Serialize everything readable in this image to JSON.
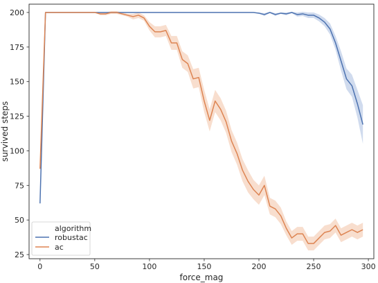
{
  "chart_data": {
    "type": "line",
    "xlabel": "force_mag",
    "ylabel": "survived steps",
    "xlim": [
      -10,
      305
    ],
    "ylim": [
      22,
      206
    ],
    "xticks": [
      0,
      50,
      100,
      150,
      200,
      250,
      300
    ],
    "yticks": [
      25,
      50,
      75,
      100,
      125,
      150,
      175,
      200
    ],
    "grid": false,
    "legend": {
      "title": "algorithm",
      "placement": "bottom-left"
    },
    "x": [
      0,
      5,
      10,
      15,
      20,
      25,
      30,
      35,
      40,
      45,
      50,
      55,
      60,
      65,
      70,
      75,
      80,
      85,
      90,
      95,
      100,
      105,
      110,
      115,
      120,
      125,
      130,
      135,
      140,
      145,
      150,
      155,
      160,
      165,
      170,
      175,
      180,
      185,
      190,
      195,
      200,
      205,
      210,
      215,
      220,
      225,
      230,
      235,
      240,
      245,
      250,
      255,
      260,
      265,
      270,
      275,
      280,
      285,
      290,
      295
    ],
    "series": [
      {
        "name": "robustac",
        "color": "#4c72b0",
        "band_color": "#a9bde0",
        "values": [
          62,
          200,
          200,
          200,
          200,
          200,
          200,
          200,
          200,
          200,
          200,
          200,
          200,
          200,
          200,
          200,
          200,
          200,
          200,
          200,
          200,
          200,
          200,
          200,
          200,
          200,
          200,
          200,
          200,
          200,
          200,
          200,
          200,
          200,
          200,
          200,
          200,
          200,
          200,
          200,
          199.5,
          198.5,
          200,
          198.5,
          199.5,
          199,
          200,
          198.5,
          199,
          198,
          198,
          196,
          193,
          188,
          178,
          165,
          152,
          147,
          134,
          119
        ],
        "band": [
          0,
          0,
          0,
          0,
          0,
          0,
          0,
          0,
          0,
          0,
          0,
          0,
          0,
          0,
          0,
          0,
          0,
          0,
          0,
          0,
          0,
          0,
          0,
          0,
          0,
          0,
          0,
          0,
          0,
          0,
          0,
          0,
          0,
          0,
          0,
          0,
          0,
          0,
          0,
          0,
          0.5,
          1,
          0.5,
          1,
          0.5,
          1,
          0.5,
          1.5,
          1.5,
          2,
          2,
          2.5,
          3,
          4,
          5,
          7,
          7.5,
          8,
          10,
          14
        ]
      },
      {
        "name": "ac",
        "color": "#dd8452",
        "band_color": "#f2c3a6",
        "values": [
          87,
          200,
          200,
          200,
          200,
          200,
          200,
          200,
          200,
          200,
          200,
          199,
          199,
          200,
          200,
          199,
          198,
          197,
          198,
          196,
          190,
          186,
          186,
          187,
          178,
          178,
          166,
          163,
          152,
          153,
          136,
          122,
          136,
          130,
          121,
          107,
          98,
          86,
          78,
          72,
          68,
          75,
          60,
          58,
          53,
          44,
          37,
          40,
          40,
          33,
          33,
          37,
          41,
          42,
          46,
          39,
          41,
          43,
          41,
          43
        ],
        "band": [
          0,
          0,
          0,
          0,
          0,
          0,
          0,
          0,
          0,
          0,
          0,
          1,
          1,
          1,
          1,
          1,
          1,
          2,
          2,
          2,
          3,
          4,
          4,
          4,
          5,
          5,
          6,
          6,
          7,
          7,
          8,
          8,
          8,
          8,
          8,
          8,
          8,
          8,
          8,
          7,
          7,
          7,
          6,
          6,
          6,
          5,
          5,
          5,
          5,
          5,
          5,
          5,
          5,
          5,
          5,
          5,
          5,
          5,
          5,
          5
        ]
      }
    ]
  }
}
